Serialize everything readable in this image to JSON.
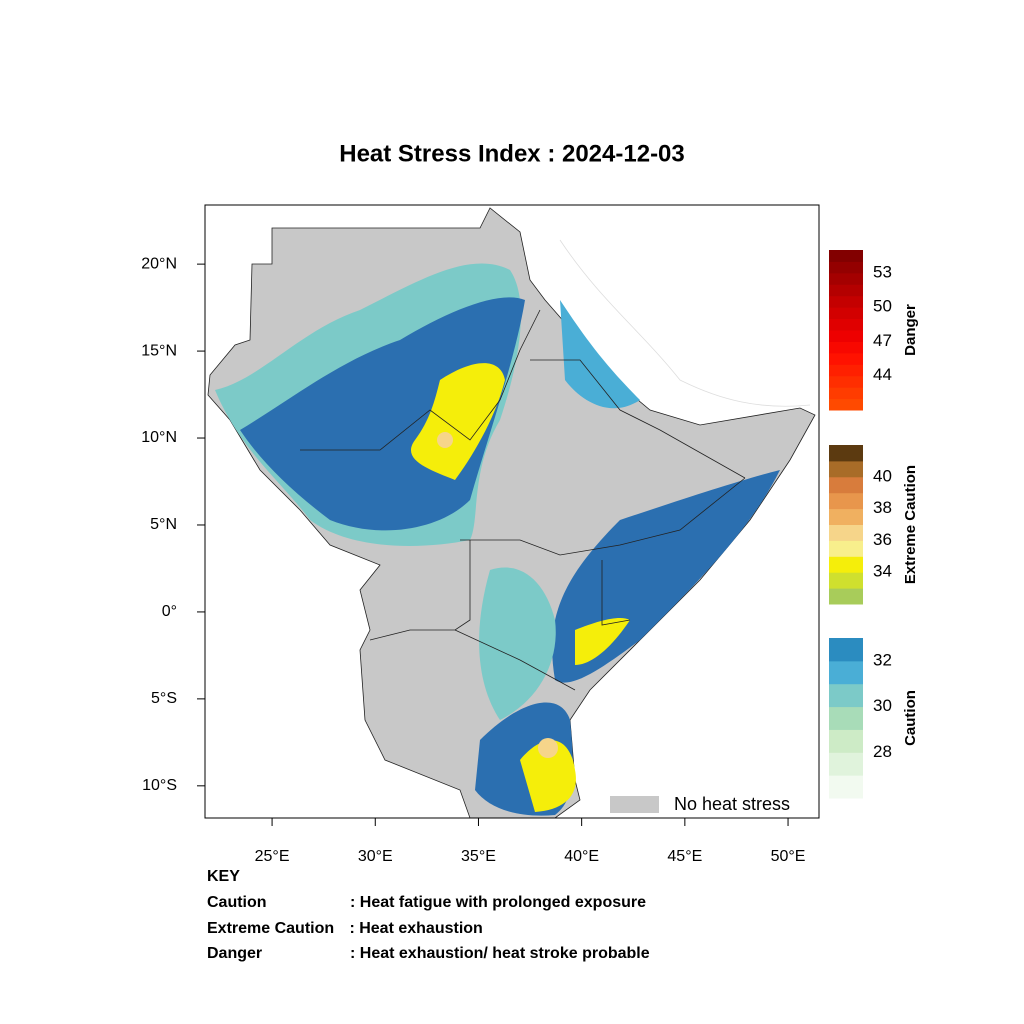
{
  "title": "Heat Stress Index : 2024-12-03",
  "xlim": [
    21.75,
    51.5
  ],
  "ylim": [
    -11.85,
    23.4
  ],
  "xticks": [
    {
      "value": 25,
      "label": "25°E"
    },
    {
      "value": 30,
      "label": "30°E"
    },
    {
      "value": 35,
      "label": "35°E"
    },
    {
      "value": 40,
      "label": "40°E"
    },
    {
      "value": 45,
      "label": "45°E"
    },
    {
      "value": 50,
      "label": "50°E"
    }
  ],
  "yticks": [
    {
      "value": 20,
      "label": "20°N"
    },
    {
      "value": 15,
      "label": "15°N"
    },
    {
      "value": 10,
      "label": "10°N"
    },
    {
      "value": 5,
      "label": "5°N"
    },
    {
      "value": 0,
      "label": "0°"
    },
    {
      "value": -5,
      "label": "5°S"
    },
    {
      "value": -10,
      "label": "10°S"
    }
  ],
  "colorbars": [
    {
      "name": "Danger",
      "lim": [
        41,
        55
      ],
      "ticks": [
        44,
        47,
        50,
        53
      ],
      "colors": [
        "#ff4a00",
        "#ff3c00",
        "#ff2e00",
        "#ff2000",
        "#ff1200",
        "#f80800",
        "#ee0000",
        "#e00000",
        "#d20000",
        "#c40000",
        "#b40000",
        "#a40000",
        "#940000",
        "#820000"
      ]
    },
    {
      "name": "Extreme Caution",
      "lim": [
        32,
        42
      ],
      "ticks": [
        34,
        36,
        38,
        40
      ],
      "colors": [
        "#a8cc5a",
        "#cfe02e",
        "#f5ee0a",
        "#f8ef8c",
        "#f6d58a",
        "#f0b060",
        "#e8964c",
        "#d87c3c",
        "#a86c28",
        "#5c3a10"
      ]
    },
    {
      "name": "Caution",
      "lim": [
        26,
        33
      ],
      "ticks": [
        28,
        30,
        32
      ],
      "colors": [
        "#f2faf0",
        "#e0f3dc",
        "#cdebc6",
        "#a8dcb8",
        "#7ccac8",
        "#4aaed6",
        "#2b8cc0"
      ]
    }
  ],
  "no_stress_label": "No heat stress",
  "key": {
    "title": "KEY",
    "rows": [
      [
        "Caution",
        ": Heat fatigue with prolonged exposure"
      ],
      [
        "Extreme Caution",
        " : Heat exhaustion"
      ],
      [
        "Danger",
        ": Heat exhaustion/ heat stroke probable"
      ]
    ]
  }
}
